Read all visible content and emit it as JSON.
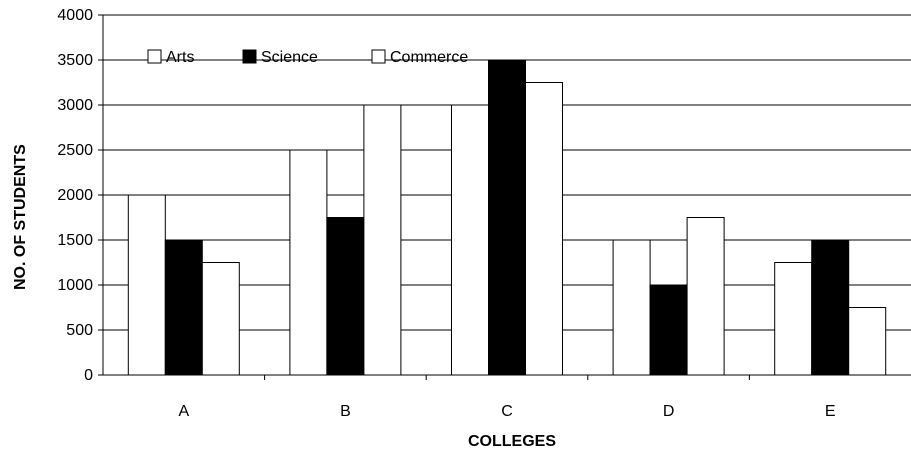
{
  "chart_data": {
    "type": "bar",
    "title": "",
    "xlabel": "COLLEGES",
    "ylabel": "NO. OF STUDENTS",
    "categories": [
      "A",
      "B",
      "C",
      "D",
      "E"
    ],
    "series": [
      {
        "name": "Arts",
        "values": [
          2000,
          2500,
          3000,
          1500,
          1250
        ],
        "color": "#ffffff"
      },
      {
        "name": "Science",
        "values": [
          1500,
          1750,
          3500,
          1000,
          1500
        ],
        "color": "#000000"
      },
      {
        "name": "Commerce",
        "values": [
          1250,
          3000,
          3250,
          1750,
          750
        ],
        "color": "#ffffff"
      }
    ],
    "ylim": [
      0,
      4000
    ],
    "yticks": [
      0,
      500,
      1000,
      1500,
      2000,
      2500,
      3000,
      3500,
      4000
    ],
    "grid": true,
    "legend": "top-left"
  }
}
